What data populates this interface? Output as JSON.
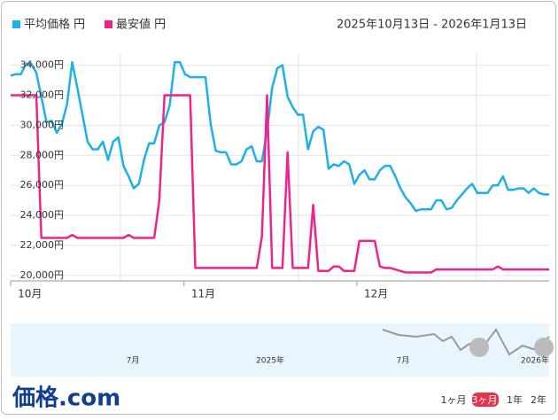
{
  "chart_data": {
    "type": "line",
    "date_range": "2025年10月13日 - 2026年1月13日",
    "x": [
      0,
      1,
      2,
      3,
      4,
      5,
      6,
      7,
      8,
      9,
      10,
      11,
      12,
      13,
      14,
      15,
      16,
      17,
      18,
      19,
      20,
      21,
      22,
      23,
      24,
      25,
      26,
      27,
      28,
      29,
      30,
      31,
      32,
      33,
      34,
      35,
      36,
      37,
      38,
      39,
      40,
      41,
      42,
      43,
      44,
      45,
      46,
      47,
      48,
      49,
      50,
      51,
      52,
      53,
      54,
      55,
      56,
      57,
      58,
      59,
      60,
      61,
      62,
      63,
      64,
      65,
      66,
      67,
      68,
      69,
      70,
      71,
      72,
      73,
      74,
      75,
      76,
      77,
      78,
      79,
      80,
      81,
      82,
      83,
      84,
      85,
      86,
      87,
      88,
      89,
      90,
      91,
      92,
      93,
      94,
      95,
      96,
      97,
      98,
      99,
      100,
      101,
      102,
      103,
      104,
      105
    ],
    "series": [
      {
        "name": "平均価格 円",
        "color": "#1cb1ea",
        "values": [
          33300,
          33400,
          33400,
          34100,
          34100,
          33500,
          31900,
          30200,
          30300,
          29500,
          30100,
          31400,
          34200,
          32500,
          30700,
          28900,
          28400,
          28400,
          28900,
          27700,
          28900,
          29200,
          27300,
          26600,
          25800,
          26100,
          27700,
          28800,
          28800,
          30000,
          30200,
          31300,
          34200,
          34200,
          33400,
          33200,
          33200,
          33200,
          33200,
          30100,
          28300,
          28200,
          28200,
          27400,
          27400,
          27600,
          28400,
          28600,
          27600,
          27600,
          29600,
          32500,
          33800,
          34000,
          31900,
          31200,
          30700,
          30700,
          28400,
          29600,
          29900,
          29700,
          27100,
          27400,
          27300,
          27600,
          27400,
          26100,
          26700,
          27000,
          26400,
          26400,
          27000,
          27300,
          27300,
          26600,
          25800,
          25200,
          24800,
          24300,
          24400,
          24400,
          24400,
          25000,
          25000,
          24400,
          24500,
          25000,
          25400,
          25800,
          26100,
          25500,
          25500,
          25500,
          26000,
          26000,
          26600,
          25700,
          25700,
          25800,
          25800,
          25500,
          25800,
          25500,
          25400,
          25400
        ]
      },
      {
        "name": "最安値 円",
        "color": "#f0228e",
        "values": [
          32000,
          32000,
          32000,
          32000,
          32000,
          32000,
          22500,
          22500,
          22500,
          22500,
          22500,
          22500,
          22700,
          22500,
          22500,
          22500,
          22500,
          22500,
          22500,
          22500,
          22500,
          22500,
          22500,
          22700,
          22500,
          22500,
          22500,
          22500,
          22500,
          25000,
          32000,
          32000,
          32000,
          32000,
          32000,
          32000,
          20500,
          20500,
          20500,
          20500,
          20500,
          20500,
          20500,
          20500,
          20500,
          20500,
          20500,
          20500,
          20500,
          22600,
          32000,
          20500,
          20500,
          20500,
          28200,
          20500,
          20500,
          20500,
          20500,
          24700,
          20300,
          20300,
          20300,
          20600,
          20600,
          20300,
          20300,
          20300,
          22300,
          22300,
          22300,
          22300,
          20600,
          20500,
          20500,
          20400,
          20300,
          20200,
          20200,
          20200,
          20200,
          20200,
          20200,
          20400,
          20400,
          20400,
          20400,
          20400,
          20400,
          20400,
          20400,
          20400,
          20400,
          20400,
          20400,
          20600,
          20400,
          20400,
          20400,
          20400,
          20400,
          20400,
          20400,
          20400,
          20400,
          20400
        ]
      }
    ],
    "xlim": [
      0,
      105
    ],
    "xticks": [
      {
        "value": 1.4,
        "label": "10月"
      },
      {
        "value": 35.2,
        "label": "11月"
      },
      {
        "value": 68.9,
        "label": "12月"
      }
    ],
    "xgrid": [
      21.4,
      56.1,
      90.8
    ],
    "ylim": [
      19700,
      34800
    ],
    "yticks": [
      {
        "value": 20000,
        "label": "20,000円"
      },
      {
        "value": 22000,
        "label": "22,000円"
      },
      {
        "value": 24000,
        "label": "24,000円"
      },
      {
        "value": 26000,
        "label": "26,000円"
      },
      {
        "value": 28000,
        "label": "28,000円"
      },
      {
        "value": 30000,
        "label": "30,000円"
      },
      {
        "value": 32000,
        "label": "32,000円"
      },
      {
        "value": 34000,
        "label": "34,000円"
      }
    ],
    "grid": true
  },
  "navigator": {
    "labels": [
      "7月",
      "2025年",
      "7月",
      "2026年"
    ]
  },
  "footer": {
    "logo": "価格.com",
    "ranges": [
      "1ヶ月",
      "3ヶ月",
      "1年",
      "2年"
    ],
    "selected": 1
  }
}
